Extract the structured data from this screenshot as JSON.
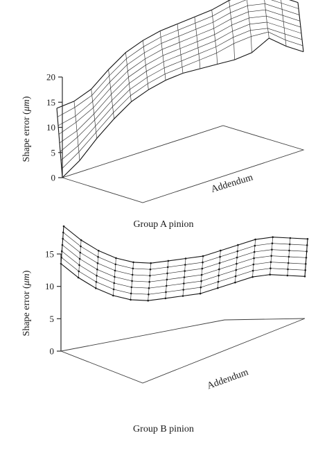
{
  "chart_data": [
    {
      "type": "surface",
      "caption": "Group A pinion",
      "zlabel": "Shape error (μm)",
      "zlabel_prefix": "Shape error (",
      "zlabel_unit": "μm",
      "zlabel_suffix": ")",
      "axis_label": "Addendum",
      "zlim": [
        0,
        20
      ],
      "zticks": [
        0,
        5,
        10,
        15,
        20
      ],
      "grid": false,
      "surface_rows": [
        [
          0,
          3,
          7,
          10.5,
          13.5,
          15.5,
          17,
          18,
          18.5,
          19,
          19.5,
          20.5,
          23,
          21,
          19.5
        ],
        [
          0,
          3,
          6.5,
          10,
          13,
          15,
          16.5,
          17.5,
          18.5,
          19.5,
          21,
          22,
          22.5,
          20.5,
          19
        ],
        [
          0,
          2.5,
          6,
          9.5,
          12.5,
          14.5,
          16,
          17,
          18,
          19,
          20.5,
          21.5,
          21.5,
          20,
          18.5
        ],
        [
          0,
          2.5,
          5.5,
          9,
          12,
          14,
          15.5,
          16.5,
          17.5,
          18.5,
          20,
          21,
          21,
          19.5,
          18
        ],
        [
          0,
          2,
          5,
          8.5,
          11.5,
          13.5,
          15,
          16,
          17,
          18,
          19.5,
          20.5,
          20.5,
          19,
          17.5
        ],
        [
          0,
          2,
          4.5,
          8,
          11,
          13,
          14.5,
          15.5,
          16.5,
          17.5,
          19,
          20,
          20,
          18.5,
          17
        ],
        [
          0,
          1.5,
          4,
          7.5,
          10.5,
          12.5,
          14,
          15,
          16,
          17,
          18.5,
          19.5,
          19.5,
          18,
          16.5
        ],
        [
          0,
          1.5,
          3.5,
          7,
          10,
          12,
          13.5,
          14.5,
          15.5,
          16.5,
          18,
          19,
          19,
          17.5,
          16
        ],
        [
          0,
          1,
          3,
          6.5,
          9.5,
          11.5,
          13,
          14,
          15,
          16,
          17.5,
          18.5,
          18.5,
          17,
          15.5
        ]
      ]
    },
    {
      "type": "surface",
      "caption": "Group B pinion",
      "zlabel": "Shape error (μm)",
      "zlabel_prefix": "Shape error (",
      "zlabel_unit": "μm",
      "zlabel_suffix": ")",
      "axis_label": "Addendum",
      "zlim": [
        0,
        15
      ],
      "zticks": [
        0,
        5,
        10,
        15
      ],
      "grid": false,
      "surface_rows": [
        [
          13.5,
          11,
          9,
          7.5,
          6.5,
          6,
          6,
          6,
          6,
          6.5,
          7,
          7.5,
          7.5,
          7,
          6.5
        ],
        [
          13,
          10.5,
          8.5,
          7,
          6,
          5.5,
          5.5,
          5.5,
          5.5,
          6,
          6.5,
          7,
          7,
          6.5,
          6
        ],
        [
          12.5,
          10,
          8,
          6.5,
          5.5,
          5,
          5,
          5,
          5,
          5.5,
          6,
          6.5,
          6.5,
          6,
          5.5
        ],
        [
          12,
          9.5,
          7.5,
          6,
          5,
          4.5,
          4.5,
          4.5,
          4.5,
          5,
          5.5,
          6,
          6,
          5.5,
          5
        ],
        [
          11.5,
          9,
          7,
          5.5,
          4.5,
          4,
          4,
          4,
          4,
          4.5,
          5,
          5.5,
          5.5,
          5,
          4.5
        ],
        [
          11,
          8.5,
          6.5,
          5,
          4,
          3.5,
          3.5,
          3.5,
          3.5,
          4,
          4.5,
          5,
          5,
          4.5,
          4
        ],
        [
          10.5,
          8,
          6,
          4.5,
          3.5,
          3,
          3,
          3,
          3,
          3.5,
          4,
          4.5,
          4.5,
          4,
          3.5
        ]
      ]
    }
  ]
}
